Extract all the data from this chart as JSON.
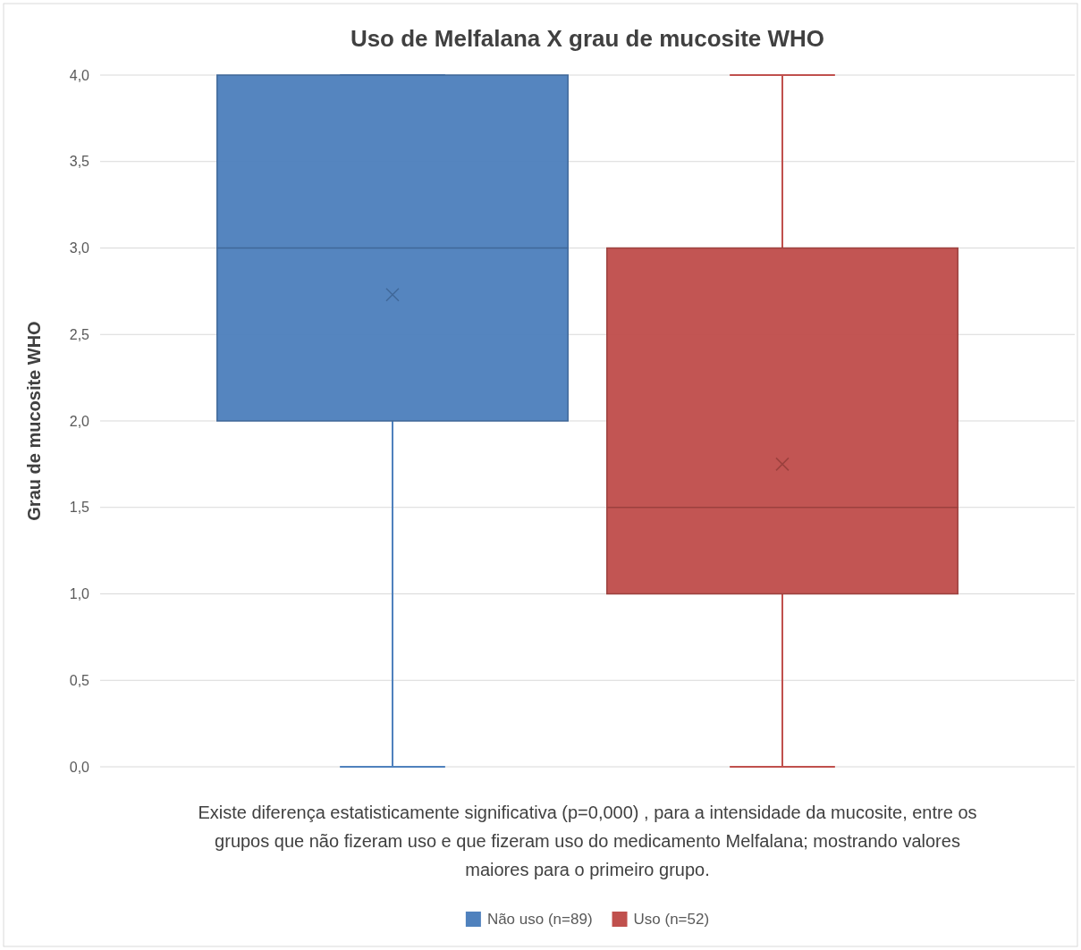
{
  "chart_data": {
    "type": "box",
    "title": "Uso de Melfalana X grau de mucosite WHO",
    "ylabel": "Grau de mucosite WHO",
    "categories": [
      null
    ],
    "series": [
      {
        "name": "Não uso (n=89)",
        "color": "#4f81bd",
        "boxes": [
          {
            "low": 0,
            "q1": 2,
            "median": 3,
            "q3": 4,
            "high": 4,
            "mean": 2.73
          }
        ]
      },
      {
        "name": "Uso (n=52)",
        "color": "#c0504d",
        "boxes": [
          {
            "low": 0,
            "q1": 1,
            "median": 1.5,
            "q3": 3,
            "high": 4,
            "mean": 1.75
          }
        ]
      }
    ],
    "ylim": [
      0,
      4
    ],
    "yticks": [
      {
        "value": 0,
        "label": "0,0"
      },
      {
        "value": 0.5,
        "label": "0,5"
      },
      {
        "value": 1,
        "label": "1,0"
      },
      {
        "value": 1.5,
        "label": "1,5"
      },
      {
        "value": 2,
        "label": "2,0"
      },
      {
        "value": 2.5,
        "label": "2,5"
      },
      {
        "value": 3,
        "label": "3,0"
      },
      {
        "value": 3.5,
        "label": "3,5"
      },
      {
        "value": 4,
        "label": "4,0"
      }
    ],
    "grid": "y",
    "legend": "bottom",
    "annotations": [
      "Existe diferença estatisticamente significativa (p=0,000) , para a intensidade da mucosite, entre os grupos que não fizeram uso e que fizeram uso do medicamento Melfalana; mostrando valores maiores para o primeiro grupo."
    ]
  }
}
